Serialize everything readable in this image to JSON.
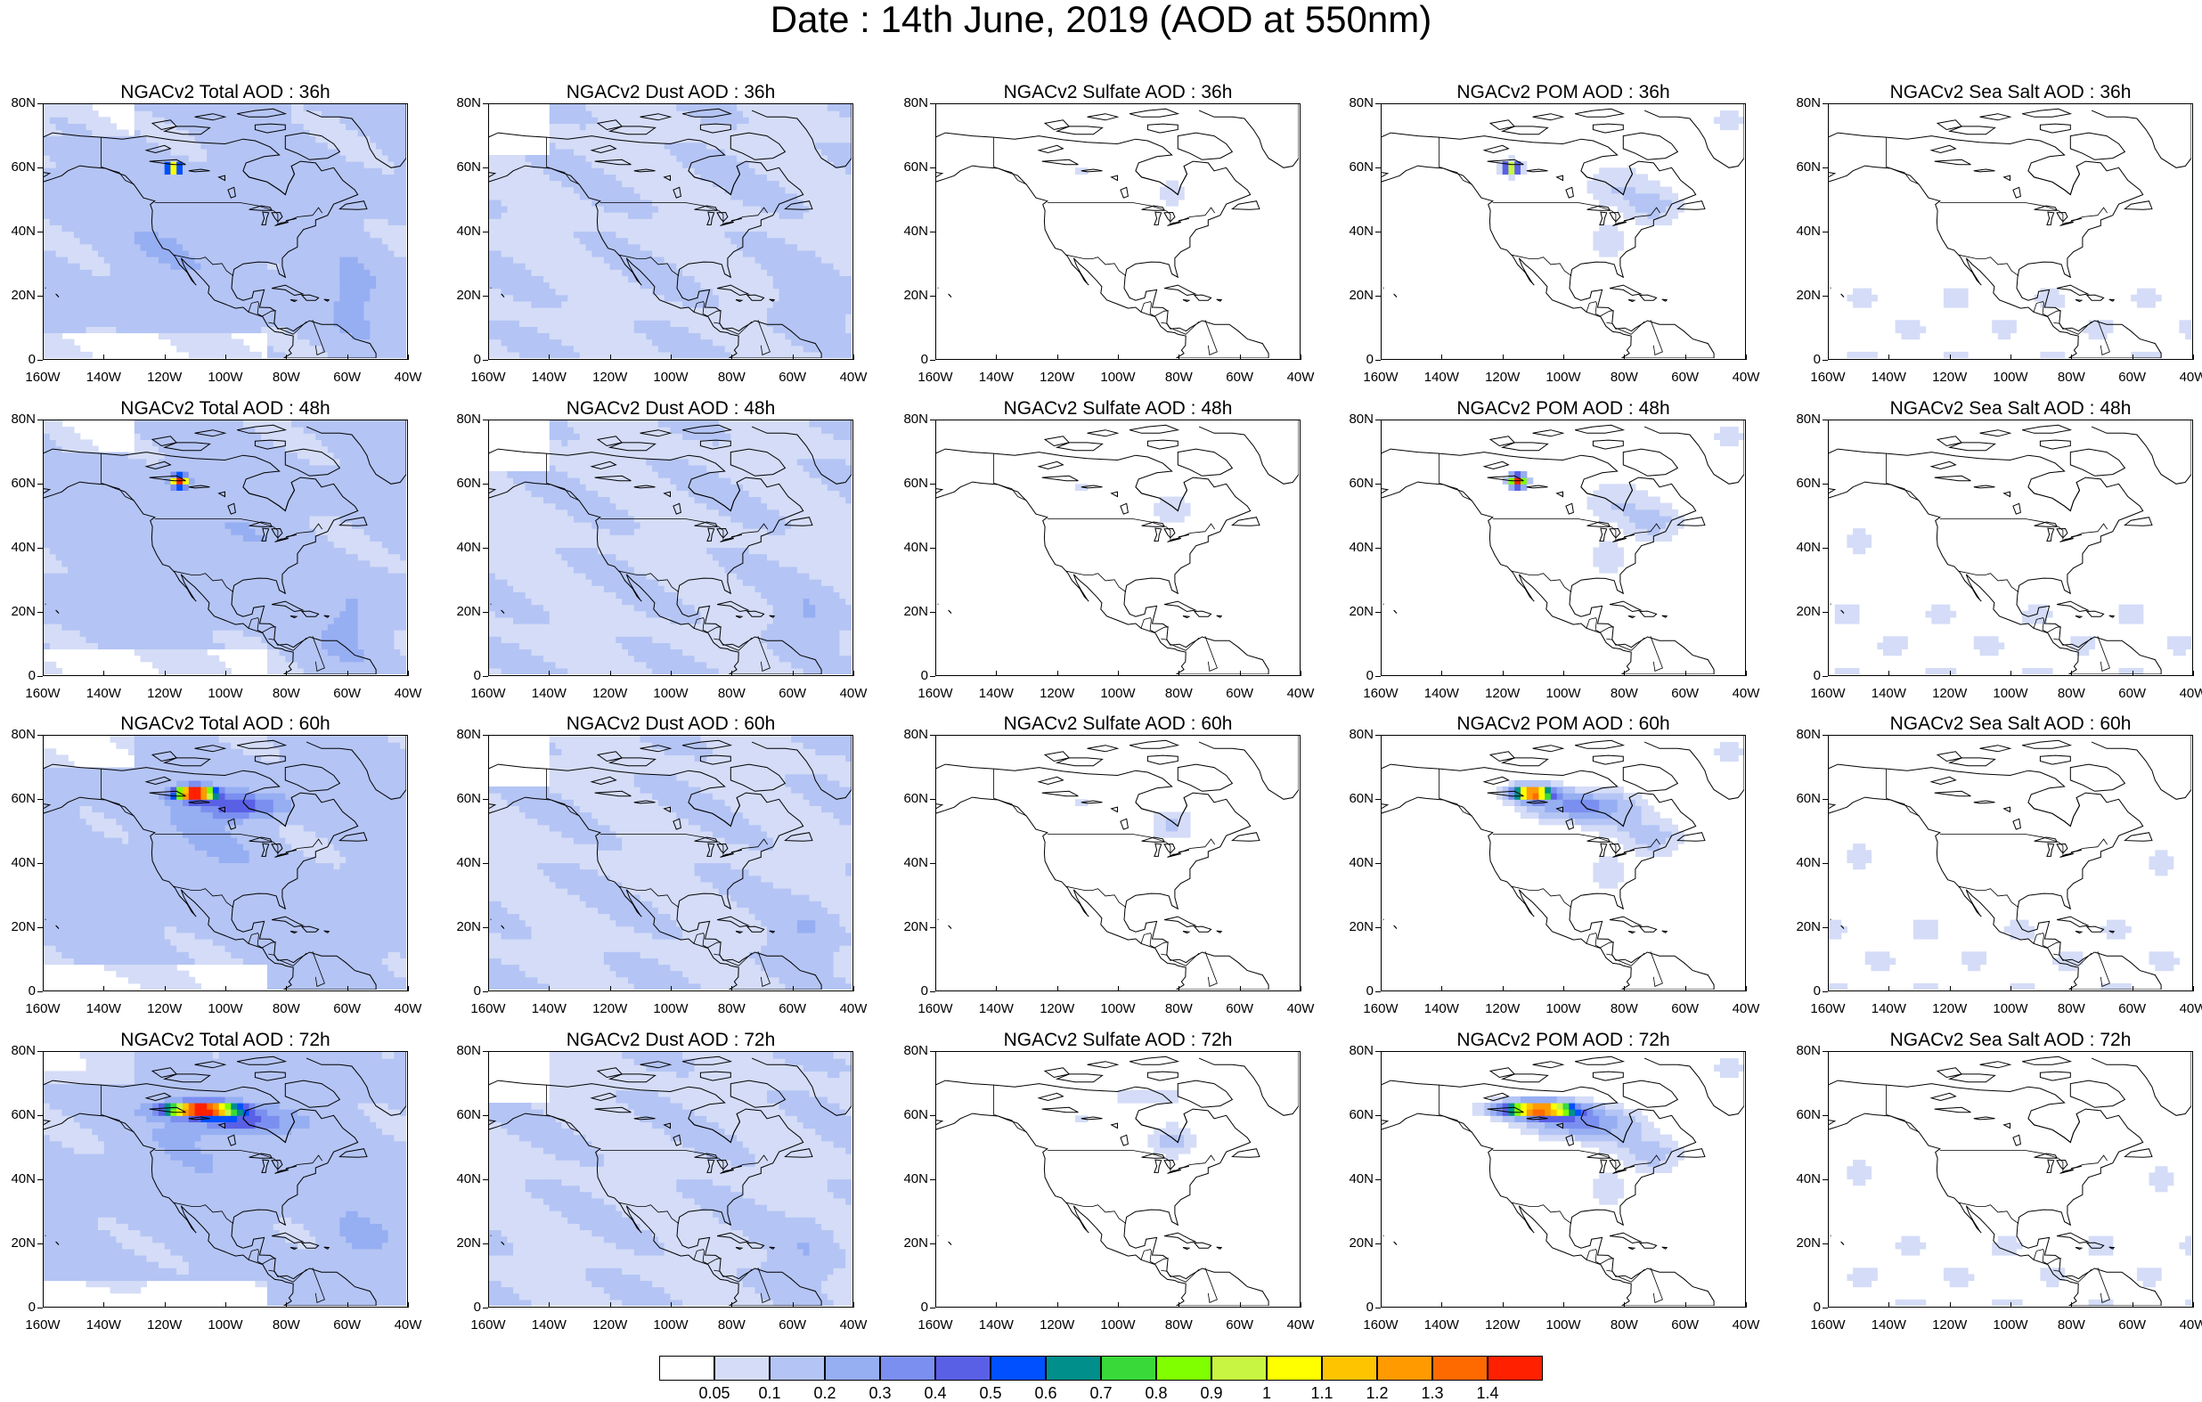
{
  "title": "Date : 14th June, 2019 (AOD at 550nm)",
  "panel_titles": [
    [
      "NGACv2 Total AOD : 36h",
      "NGACv2 Dust AOD : 36h",
      "NGACv2 Sulfate AOD : 36h",
      "NGACv2 POM AOD : 36h",
      "NGACv2 Sea Salt AOD : 36h"
    ],
    [
      "NGACv2 Total AOD : 48h",
      "NGACv2 Dust AOD : 48h",
      "NGACv2 Sulfate AOD : 48h",
      "NGACv2 POM AOD : 48h",
      "NGACv2 Sea Salt AOD : 48h"
    ],
    [
      "NGACv2 Total AOD : 60h",
      "NGACv2 Dust AOD : 60h",
      "NGACv2 Sulfate AOD : 60h",
      "NGACv2 POM AOD : 60h",
      "NGACv2 Sea Salt AOD : 60h"
    ],
    [
      "NGACv2 Total AOD : 72h",
      "NGACv2 Dust AOD : 72h",
      "NGACv2 Sulfate AOD : 72h",
      "NGACv2 POM AOD : 72h",
      "NGACv2 Sea Salt  AOD : 72h"
    ]
  ],
  "lat_ticks": [
    "80N",
    "60N",
    "40N",
    "20N",
    "0"
  ],
  "lon_ticks": [
    "160W",
    "140W",
    "120W",
    "100W",
    "80W",
    "60W",
    "40W"
  ],
  "colorbar": {
    "colors": [
      "#ffffff",
      "#d4dcf7",
      "#b4c4f4",
      "#96aef2",
      "#7b8ff0",
      "#5a60e6",
      "#0050ff",
      "#008f8a",
      "#3ad93a",
      "#7fff00",
      "#c8f542",
      "#ffff00",
      "#ffc400",
      "#ff9a00",
      "#ff6a00",
      "#ff2000"
    ],
    "labels": [
      "0.05",
      "0.1",
      "0.2",
      "0.3",
      "0.4",
      "0.5",
      "0.6",
      "0.7",
      "0.8",
      "0.9",
      "1",
      "1.1",
      "1.2",
      "1.3",
      "1.4"
    ]
  },
  "fields": {
    "total_coverage": "widespread",
    "dust_coverage": "widespread",
    "sulfate_coverage": "sparse",
    "pom_coverage": "moderate",
    "seasalt_coverage": "sparse"
  }
}
